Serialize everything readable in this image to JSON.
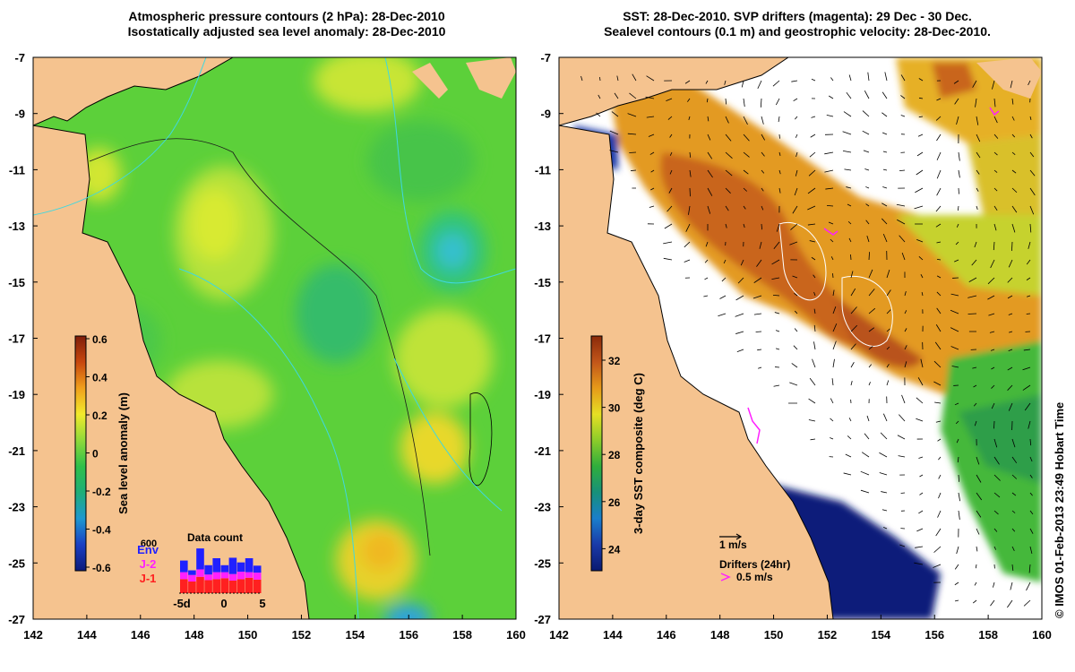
{
  "left_panel": {
    "title_line1": "Atmospheric pressure contours (2 hPa): 28-Dec-2010",
    "title_line2": "Isostatically adjusted sea level anomaly: 28-Dec-2010",
    "colorbar": {
      "label": "Sea level anomaly (m)",
      "ticks": [
        "0.6",
        "0.4",
        "0.2",
        "0",
        "-0.2",
        "-0.4",
        "-0.6"
      ],
      "colors": [
        "#7f1d0a",
        "#c8470e",
        "#f0a01c",
        "#f2ea2c",
        "#8fd93a",
        "#2ec04a",
        "#1fae78",
        "#1e98d0",
        "#1a3fc4",
        "#0d1a7a"
      ]
    },
    "data_count": {
      "title": "Data count",
      "ymax_label": "600",
      "legend": [
        {
          "name": "Env",
          "color": "#2020ff"
        },
        {
          "name": "J-2",
          "color": "#ff20ff"
        },
        {
          "name": "J-1",
          "color": "#ff2020"
        }
      ],
      "x_labels": [
        "-5d",
        "0",
        "5"
      ],
      "days": [
        -5,
        -4,
        -3,
        -2,
        -1,
        0,
        1,
        2,
        3,
        4
      ],
      "j1": [
        0.3,
        0.25,
        0.35,
        0.28,
        0.3,
        0.32,
        0.27,
        0.3,
        0.33,
        0.29
      ],
      "j2": [
        0.15,
        0.14,
        0.16,
        0.12,
        0.15,
        0.13,
        0.14,
        0.16,
        0.12,
        0.15
      ],
      "env": [
        0.25,
        0.1,
        0.45,
        0.2,
        0.3,
        0.15,
        0.35,
        0.2,
        0.3,
        0.15
      ]
    }
  },
  "right_panel": {
    "title_line1": "SST: 28-Dec-2010. SVP drifters (magenta): 29 Dec - 30 Dec.",
    "title_line2": "Sealevel contours (0.1 m) and geostrophic velocity: 28-Dec-2010.",
    "colorbar": {
      "label": "3-day SST composite (deg C)",
      "ticks": [
        "32",
        "30",
        "28",
        "26",
        "24"
      ],
      "colors": [
        "#8a2a0a",
        "#c2561a",
        "#e69a1a",
        "#e6df24",
        "#8ccc2a",
        "#2fae3c",
        "#17907a",
        "#1a7ecc",
        "#1a3aa8",
        "#0a1a70"
      ]
    },
    "velocity_scale_label": "1 m/s",
    "drifters_label": "Drifters (24hr)",
    "drifter_speed_label": "0.5 m/s"
  },
  "axes": {
    "lon_ticks": [
      "142",
      "144",
      "146",
      "148",
      "150",
      "152",
      "154",
      "156",
      "158",
      "160"
    ],
    "lat_ticks": [
      "-7",
      "-9",
      "-11",
      "-13",
      "-15",
      "-17",
      "-19",
      "-21",
      "-23",
      "-25",
      "-27"
    ]
  },
  "credit": "© IMOS 01-Feb-2013 23:49 Hobart Time",
  "colors": {
    "land": "#f5c38f",
    "ocean_green": "#5cd03a",
    "no_data": "#ffffff",
    "coastline": "#000000",
    "pressure_contours": "#3fd8e0"
  }
}
